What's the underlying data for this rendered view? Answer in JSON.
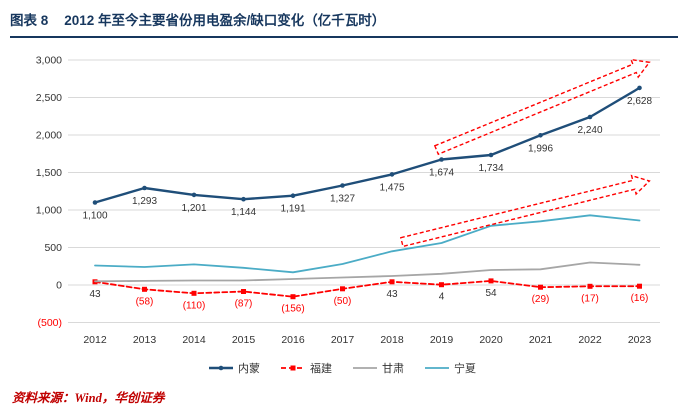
{
  "header": {
    "label": "图表 8",
    "title": "2012 年至今主要省份用电盈余/缺口变化（亿千瓦时）"
  },
  "footer": {
    "source": "资料来源：Wind，华创证券"
  },
  "chart_data": {
    "type": "line",
    "title": "2012 年至今主要省份用电盈余/缺口变化（亿千瓦时）",
    "x": [
      "2012",
      "2013",
      "2014",
      "2015",
      "2016",
      "2017",
      "2018",
      "2019",
      "2020",
      "2021",
      "2022",
      "2023"
    ],
    "ylim": [
      -500,
      3000
    ],
    "ytick_values": [
      3000,
      2500,
      2000,
      1500,
      1000,
      500,
      0,
      -500
    ],
    "ytick_labels": [
      "3,000",
      "2,500",
      "2,000",
      "1,500",
      "1,000",
      "500",
      "0",
      "(500)"
    ],
    "grid": true,
    "legend_position": "bottom",
    "series": [
      {
        "name": "内蒙",
        "color": "#1F4E79",
        "dash": "solid",
        "marker": "circle",
        "values": [
          1100,
          1293,
          1201,
          1144,
          1191,
          1327,
          1475,
          1674,
          1734,
          1996,
          2240,
          2628
        ],
        "labels": [
          "1,100",
          "1,293",
          "1,201",
          "1,144",
          "1,191",
          "1,327",
          "1,475",
          "1,674",
          "1,734",
          "1,996",
          "2,240",
          "2,628"
        ]
      },
      {
        "name": "福建",
        "color": "#FF0000",
        "dash": "dashed",
        "marker": "square",
        "values": [
          43,
          -58,
          -110,
          -87,
          -156,
          -50,
          43,
          4,
          54,
          -29,
          -17,
          -16
        ],
        "labels": [
          "43",
          "(58)",
          "(110)",
          "(87)",
          "(156)",
          "(50)",
          "43",
          "4",
          "54",
          "(29)",
          "(17)",
          "(16)"
        ]
      },
      {
        "name": "甘肃",
        "color": "#A6A6A6",
        "dash": "solid",
        "marker": "none",
        "values": [
          50,
          55,
          60,
          60,
          80,
          100,
          120,
          150,
          200,
          210,
          300,
          270
        ]
      },
      {
        "name": "宁夏",
        "color": "#4BACC6",
        "dash": "solid",
        "marker": "none",
        "values": [
          260,
          240,
          275,
          230,
          170,
          280,
          450,
          560,
          790,
          850,
          930,
          860
        ]
      }
    ],
    "annotations": [
      {
        "type": "trend-arrow",
        "color": "#FF0000",
        "dash": "dashed",
        "from": [
          2018.9,
          1800
        ],
        "to": [
          2023.2,
          2970
        ]
      },
      {
        "type": "trend-arrow",
        "color": "#FF0000",
        "dash": "dashed",
        "from": [
          2018.2,
          573
        ],
        "to": [
          2023.2,
          1387
        ]
      }
    ],
    "colors": {
      "grid": "#D9D9D9",
      "tick_text": "#333333",
      "negative_text": "#FF0000",
      "header_navy": "#17375E",
      "source_red": "#C00000"
    }
  }
}
